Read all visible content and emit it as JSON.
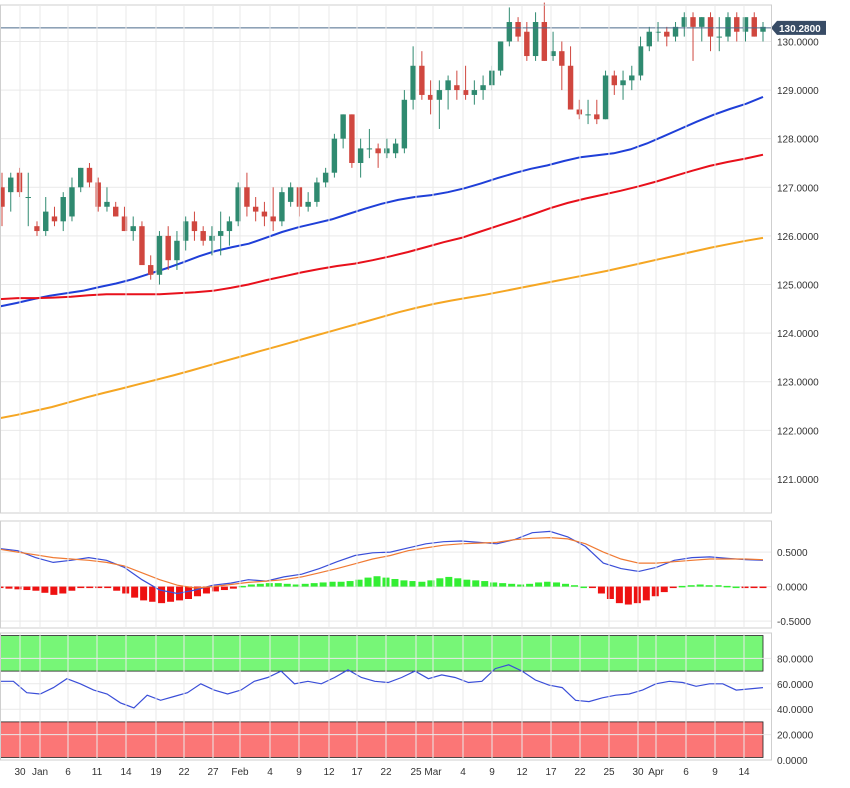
{
  "chart_data": [
    {
      "panel": "price",
      "type": "candlestick",
      "title": "",
      "xlabel": "",
      "ylabel": "",
      "ylim": [
        120.3,
        130.75
      ],
      "y_ticks": [
        "130.0000",
        "129.0000",
        "128.0000",
        "127.0000",
        "126.0000",
        "125.0000",
        "124.0000",
        "123.0000",
        "122.0000",
        "121.0000"
      ],
      "current_price_label": "130.2800",
      "current_price": 130.28,
      "grid": true,
      "candles": [
        [
          127.0,
          127.3,
          126.2,
          126.6
        ],
        [
          126.9,
          127.3,
          126.5,
          127.2
        ],
        [
          127.3,
          127.4,
          126.8,
          126.9
        ],
        [
          126.8,
          127.3,
          126.2,
          126.8
        ],
        [
          126.2,
          126.3,
          126.0,
          126.1
        ],
        [
          126.1,
          126.8,
          126.0,
          126.5
        ],
        [
          126.4,
          126.6,
          126.2,
          126.3
        ],
        [
          126.3,
          126.9,
          126.1,
          126.8
        ],
        [
          126.4,
          127.2,
          126.3,
          127.0
        ],
        [
          127.0,
          127.4,
          126.9,
          127.4
        ],
        [
          127.4,
          127.5,
          127.0,
          127.1
        ],
        [
          127.1,
          127.2,
          126.5,
          126.6
        ],
        [
          126.6,
          127.0,
          126.5,
          126.7
        ],
        [
          126.6,
          126.7,
          126.4,
          126.4
        ],
        [
          126.4,
          126.6,
          126.1,
          126.1
        ],
        [
          126.1,
          126.4,
          125.9,
          126.2
        ],
        [
          126.2,
          126.3,
          125.5,
          125.4
        ],
        [
          125.4,
          125.6,
          125.1,
          125.2
        ],
        [
          125.2,
          126.1,
          125.0,
          126.0
        ],
        [
          126.0,
          126.2,
          125.3,
          125.5
        ],
        [
          125.5,
          126.1,
          125.3,
          125.9
        ],
        [
          125.9,
          126.4,
          125.7,
          126.3
        ],
        [
          126.3,
          126.5,
          125.9,
          126.1
        ],
        [
          126.1,
          126.2,
          125.8,
          125.9
        ],
        [
          125.9,
          126.2,
          125.6,
          126.0
        ],
        [
          126.0,
          126.5,
          125.6,
          126.1
        ],
        [
          126.1,
          126.4,
          125.8,
          126.3
        ],
        [
          126.3,
          127.1,
          126.2,
          127.0
        ],
        [
          127.0,
          127.3,
          126.4,
          126.6
        ],
        [
          126.6,
          126.8,
          126.3,
          126.5
        ],
        [
          126.5,
          126.7,
          126.2,
          126.4
        ],
        [
          126.4,
          127.0,
          126.1,
          126.3
        ],
        [
          126.3,
          127.0,
          126.2,
          126.9
        ],
        [
          126.7,
          127.1,
          126.6,
          127.0
        ],
        [
          127.0,
          127.0,
          126.4,
          126.6
        ],
        [
          126.6,
          126.9,
          126.5,
          126.7
        ],
        [
          126.7,
          127.2,
          126.6,
          127.1
        ],
        [
          127.1,
          127.4,
          127.0,
          127.3
        ],
        [
          127.3,
          128.1,
          127.2,
          128.0
        ],
        [
          128.0,
          128.5,
          127.8,
          128.5
        ],
        [
          128.5,
          128.5,
          127.4,
          127.5
        ],
        [
          127.5,
          128.0,
          127.2,
          127.8
        ],
        [
          127.8,
          128.2,
          127.6,
          127.8
        ],
        [
          127.8,
          127.9,
          127.4,
          127.7
        ],
        [
          127.7,
          128.0,
          127.6,
          127.8
        ],
        [
          127.7,
          128.0,
          127.6,
          127.9
        ],
        [
          127.8,
          129.0,
          127.7,
          128.8
        ],
        [
          128.8,
          129.9,
          128.6,
          129.5
        ],
        [
          129.5,
          129.8,
          128.8,
          128.9
        ],
        [
          128.9,
          129.2,
          128.5,
          128.8
        ],
        [
          128.8,
          129.2,
          128.2,
          129.0
        ],
        [
          129.0,
          129.3,
          128.6,
          129.2
        ],
        [
          129.1,
          129.4,
          128.8,
          129.0
        ],
        [
          129.0,
          129.5,
          128.8,
          128.9
        ],
        [
          128.9,
          129.2,
          128.7,
          129.0
        ],
        [
          129.0,
          129.3,
          128.8,
          129.1
        ],
        [
          129.1,
          129.5,
          129.0,
          129.4
        ],
        [
          129.4,
          130.0,
          129.3,
          130.0
        ],
        [
          130.0,
          130.7,
          129.9,
          130.4
        ],
        [
          130.4,
          130.5,
          130.0,
          130.1
        ],
        [
          130.2,
          130.4,
          129.6,
          129.7
        ],
        [
          129.7,
          130.6,
          129.6,
          130.4
        ],
        [
          130.4,
          130.8,
          129.6,
          129.6
        ],
        [
          129.7,
          130.2,
          129.6,
          129.8
        ],
        [
          129.8,
          130.0,
          129.0,
          129.5
        ],
        [
          129.5,
          129.9,
          128.6,
          128.6
        ],
        [
          128.6,
          128.8,
          128.4,
          128.5
        ],
        [
          128.5,
          128.8,
          128.3,
          128.5
        ],
        [
          128.5,
          128.8,
          128.3,
          128.4
        ],
        [
          128.4,
          129.4,
          128.4,
          129.3
        ],
        [
          129.3,
          129.4,
          128.9,
          129.1
        ],
        [
          129.1,
          129.4,
          128.8,
          129.2
        ],
        [
          129.2,
          129.5,
          129.0,
          129.3
        ],
        [
          129.3,
          130.1,
          129.2,
          129.9
        ],
        [
          129.9,
          130.3,
          129.8,
          130.2
        ],
        [
          130.2,
          130.4,
          130.0,
          130.2
        ],
        [
          130.2,
          130.3,
          129.9,
          130.1
        ],
        [
          130.1,
          130.4,
          130.0,
          130.3
        ],
        [
          130.3,
          130.6,
          130.1,
          130.5
        ],
        [
          130.5,
          130.6,
          129.6,
          130.3
        ],
        [
          130.3,
          130.5,
          130.0,
          130.5
        ],
        [
          130.5,
          130.6,
          129.8,
          130.1
        ],
        [
          130.1,
          130.5,
          129.8,
          130.1
        ],
        [
          130.1,
          130.6,
          130.0,
          130.5
        ],
        [
          130.5,
          130.6,
          130.0,
          130.2
        ],
        [
          130.2,
          130.4,
          130.0,
          130.5
        ],
        [
          130.5,
          130.6,
          130.1,
          130.1
        ],
        [
          130.2,
          130.4,
          130.0,
          130.3
        ]
      ],
      "moving_averages": [
        {
          "color": "#1f3fd8",
          "values": [
            124.55,
            124.62,
            124.7,
            124.77,
            124.82,
            124.87,
            124.95,
            125.02,
            125.11,
            125.22,
            125.33,
            125.45,
            125.58,
            125.69,
            125.77,
            125.84,
            125.96,
            126.08,
            126.18,
            126.26,
            126.34,
            126.45,
            126.56,
            126.66,
            126.74,
            126.8,
            126.84,
            126.9,
            126.98,
            127.08,
            127.19,
            127.29,
            127.38,
            127.45,
            127.54,
            127.62,
            127.66,
            127.7,
            127.78,
            127.9,
            128.05,
            128.2,
            128.35,
            128.49,
            128.61,
            128.72,
            128.86
          ]
        },
        {
          "color": "#e8101b",
          "values": [
            124.7,
            124.72,
            124.72,
            124.73,
            124.75,
            124.78,
            124.8,
            124.8,
            124.8,
            124.8,
            124.82,
            124.84,
            124.87,
            124.93,
            125.0,
            125.09,
            125.17,
            125.25,
            125.32,
            125.38,
            125.43,
            125.5,
            125.58,
            125.67,
            125.77,
            125.87,
            125.96,
            126.08,
            126.2,
            126.32,
            126.44,
            126.57,
            126.68,
            126.77,
            126.85,
            126.93,
            127.02,
            127.12,
            127.23,
            127.34,
            127.44,
            127.52,
            127.59,
            127.67
          ]
        },
        {
          "color": "#f5a623",
          "values": [
            122.25,
            122.32,
            122.4,
            122.48,
            122.58,
            122.68,
            122.77,
            122.86,
            122.95,
            123.04,
            123.13,
            123.23,
            123.33,
            123.43,
            123.53,
            123.63,
            123.73,
            123.83,
            123.93,
            124.03,
            124.13,
            124.23,
            124.33,
            124.43,
            124.52,
            124.6,
            124.67,
            124.73,
            124.79,
            124.86,
            124.93,
            125.0,
            125.07,
            125.14,
            125.21,
            125.28,
            125.36,
            125.44,
            125.52,
            125.6,
            125.68,
            125.76,
            125.83,
            125.9,
            125.96
          ]
        }
      ]
    },
    {
      "panel": "macd",
      "type": "line+bar",
      "title": "",
      "xlabel": "",
      "ylabel": "",
      "ylim": [
        -0.6,
        0.95
      ],
      "y_ticks": [
        "0.5000",
        "0.0000",
        "-0.5000"
      ],
      "grid": true,
      "series": [
        {
          "color": "#3a4ed8",
          "values": [
            0.55,
            0.52,
            0.42,
            0.35,
            0.38,
            0.42,
            0.38,
            0.28,
            0.1,
            -0.05,
            -0.1,
            -0.05,
            0.02,
            0.05,
            0.1,
            0.08,
            0.14,
            0.18,
            0.26,
            0.36,
            0.45,
            0.49,
            0.5,
            0.56,
            0.62,
            0.65,
            0.66,
            0.64,
            0.62,
            0.68,
            0.78,
            0.8,
            0.72,
            0.58,
            0.34,
            0.26,
            0.22,
            0.28,
            0.38,
            0.42,
            0.43,
            0.41,
            0.39,
            0.38
          ]
        },
        {
          "color": "#f07a33",
          "values": [
            0.54,
            0.5,
            0.46,
            0.42,
            0.4,
            0.38,
            0.35,
            0.3,
            0.2,
            0.1,
            0.02,
            -0.02,
            0.0,
            0.03,
            0.06,
            0.08,
            0.1,
            0.14,
            0.2,
            0.26,
            0.33,
            0.4,
            0.45,
            0.52,
            0.56,
            0.6,
            0.62,
            0.63,
            0.64,
            0.68,
            0.7,
            0.71,
            0.69,
            0.62,
            0.5,
            0.4,
            0.34,
            0.34,
            0.36,
            0.38,
            0.4,
            0.4,
            0.4,
            0.39
          ]
        }
      ],
      "histogram": [
        -0.02,
        -0.03,
        -0.04,
        -0.05,
        -0.06,
        -0.09,
        -0.12,
        -0.1,
        -0.06,
        -0.02,
        -0.01,
        -0.01,
        -0.02,
        -0.06,
        -0.1,
        -0.16,
        -0.2,
        -0.22,
        -0.24,
        -0.22,
        -0.2,
        -0.18,
        -0.14,
        -0.1,
        -0.07,
        -0.05,
        -0.03,
        0.01,
        0.03,
        0.04,
        0.05,
        0.05,
        0.04,
        0.03,
        0.04,
        0.05,
        0.06,
        0.07,
        0.07,
        0.08,
        0.1,
        0.13,
        0.15,
        0.13,
        0.11,
        0.09,
        0.08,
        0.07,
        0.09,
        0.12,
        0.14,
        0.12,
        0.1,
        0.09,
        0.08,
        0.06,
        0.05,
        0.04,
        0.03,
        0.04,
        0.06,
        0.07,
        0.06,
        0.04,
        0.02,
        0.0,
        -0.02,
        -0.1,
        -0.18,
        -0.24,
        -0.26,
        -0.24,
        -0.2,
        -0.14,
        -0.08,
        -0.02,
        0.01,
        0.02,
        0.03,
        0.02,
        0.02,
        0.01,
        0.0,
        -0.01,
        -0.02,
        -0.02
      ]
    },
    {
      "panel": "rsi",
      "type": "line",
      "title": "",
      "xlabel": "",
      "ylabel": "",
      "ylim": [
        0,
        100
      ],
      "y_ticks": [
        "80.0000",
        "60.0000",
        "40.0000",
        "20.0000",
        "0.0000"
      ],
      "overbought_zone": [
        70,
        100
      ],
      "oversold_zone": [
        0,
        30
      ],
      "grid": true,
      "series": [
        {
          "color": "#3a4ed8",
          "values": [
            62,
            62,
            53,
            52,
            57,
            64,
            60,
            55,
            52,
            45,
            41,
            51,
            47,
            50,
            53,
            60,
            55,
            52,
            55,
            62,
            65,
            70,
            60,
            62,
            60,
            65,
            71,
            65,
            62,
            61,
            65,
            70,
            64,
            67,
            65,
            61,
            62,
            72,
            75,
            70,
            63,
            59,
            57,
            47,
            46,
            49,
            51,
            52,
            55,
            60,
            62,
            61,
            58,
            60,
            60,
            55,
            56,
            57
          ]
        }
      ]
    }
  ],
  "x_axis": {
    "ticks": [
      "30",
      "Jan",
      "6",
      "11",
      "14",
      "19",
      "22",
      "27",
      "Feb",
      "4",
      "9",
      "12",
      "17",
      "22",
      "25",
      "Mar",
      "4",
      "9",
      "12",
      "17",
      "22",
      "25",
      "30",
      "Apr",
      "6",
      "9",
      "14"
    ]
  },
  "colors": {
    "bull": "#2f8a70",
    "bear": "#d0473f",
    "macd_hist_pos": "#33ee33",
    "macd_hist_neg": "#ee1111",
    "overbought": "#77f677",
    "oversold": "#fb7676",
    "price_line": "#4b6a8b",
    "price_label_bg": "#384c66"
  }
}
